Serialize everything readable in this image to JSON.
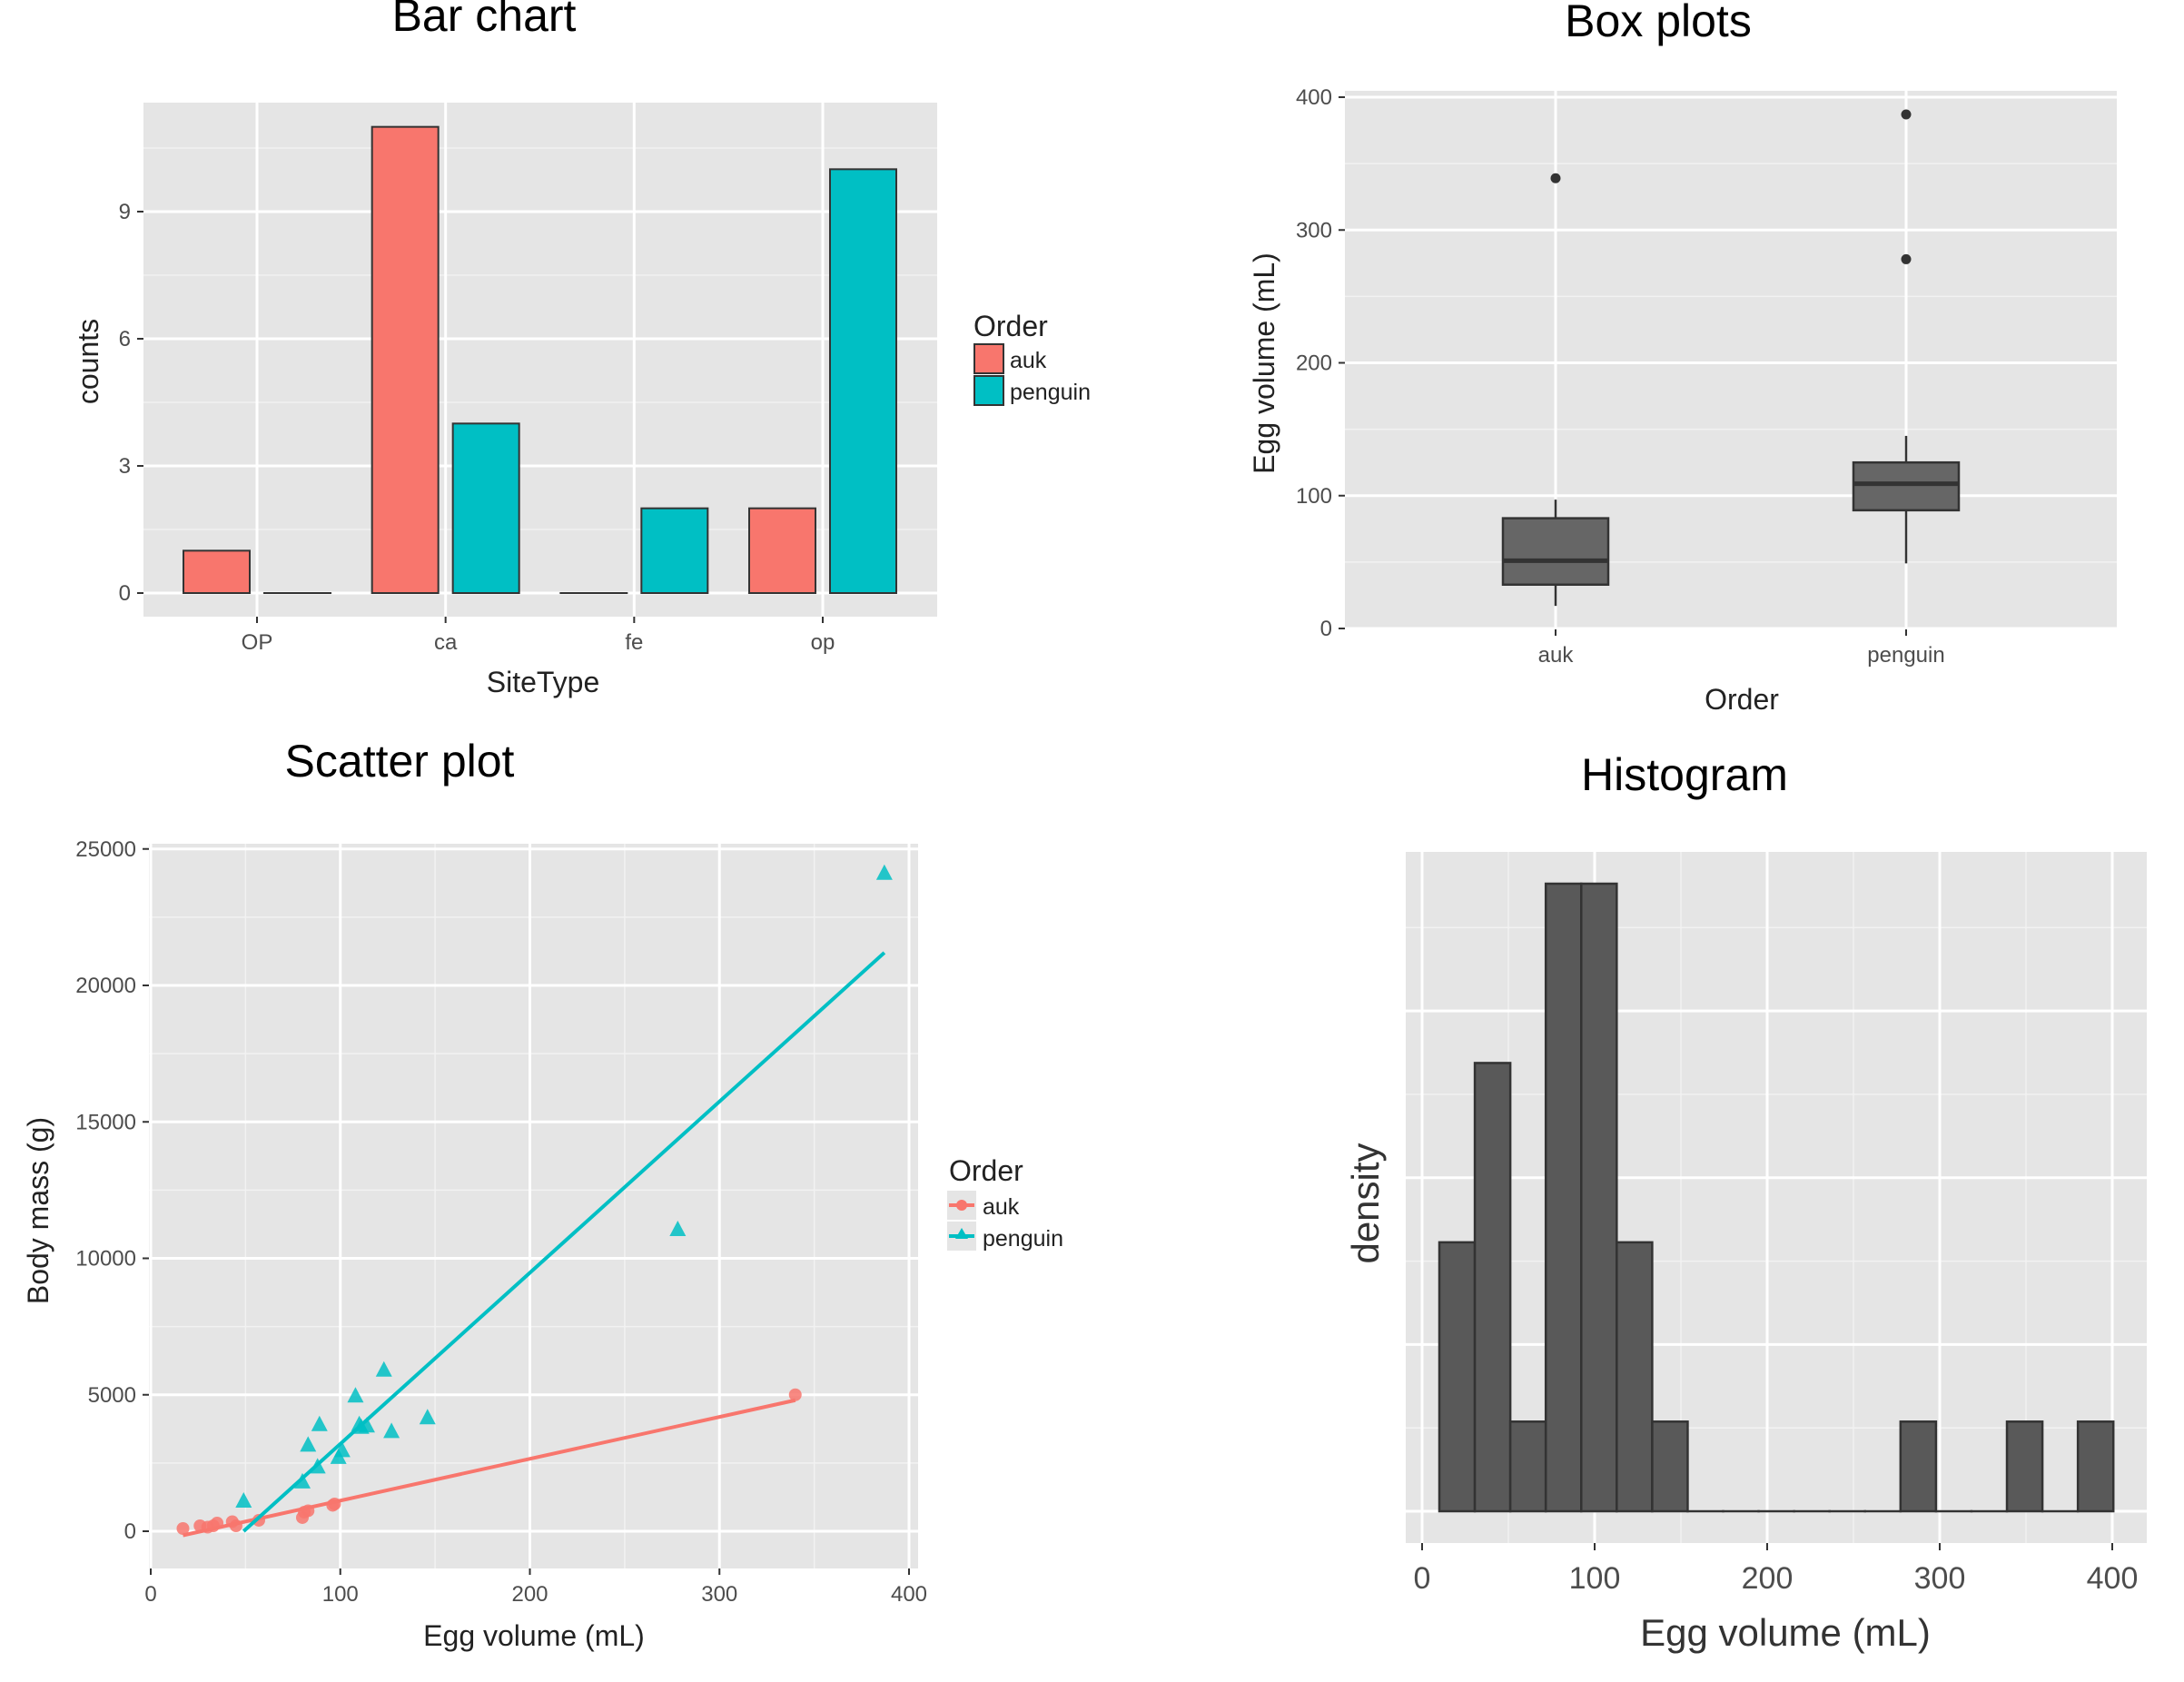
{
  "chart_data": [
    {
      "id": "bar",
      "type": "bar",
      "title": "Bar chart",
      "xlabel": "SiteType",
      "ylabel": "counts",
      "categories": [
        "OP",
        "ca",
        "fe",
        "op"
      ],
      "series": [
        {
          "name": "auk",
          "values": [
            1,
            11,
            0,
            2
          ],
          "color": "#F8766D"
        },
        {
          "name": "penguin",
          "values": [
            0,
            4,
            2,
            10
          ],
          "color": "#00BFC4"
        }
      ],
      "yticks": [
        0,
        3,
        6,
        9
      ],
      "ylim": [
        -0.55,
        11.55
      ],
      "legend": {
        "title": "Order",
        "position": "right"
      },
      "grid": true
    },
    {
      "id": "box",
      "type": "box",
      "title": "Box plots",
      "xlabel": "Order",
      "ylabel": "Egg volume (mL)",
      "categories": [
        "auk",
        "penguin"
      ],
      "boxes": [
        {
          "name": "auk",
          "whisker_low": 17,
          "q1": 33,
          "median": 51,
          "q3": 83,
          "whisker_high": 97,
          "outliers": [
            339
          ]
        },
        {
          "name": "penguin",
          "whisker_low": 49,
          "q1": 89,
          "median": 109,
          "q3": 125,
          "whisker_high": 145,
          "outliers": [
            278,
            387
          ]
        }
      ],
      "yticks": [
        0,
        100,
        200,
        300,
        400
      ],
      "ylim": [
        0,
        405
      ],
      "grid": true
    },
    {
      "id": "scatter",
      "type": "scatter",
      "title": "Scatter plot",
      "xlabel": "Egg volume (mL)",
      "ylabel": "Body mass (g)",
      "xticks": [
        0,
        100,
        200,
        300,
        400
      ],
      "yticks": [
        0,
        5000,
        10000,
        15000,
        20000,
        25000
      ],
      "xlim": [
        0,
        405
      ],
      "ylim": [
        -1400,
        25200
      ],
      "legend": {
        "title": "Order",
        "position": "right"
      },
      "grid": true,
      "series": [
        {
          "name": "auk",
          "marker": "circle",
          "color": "#F8766D",
          "points": [
            [
              17,
              100
            ],
            [
              26,
              200
            ],
            [
              30,
              150
            ],
            [
              33,
              200
            ],
            [
              35,
              300
            ],
            [
              43,
              350
            ],
            [
              45,
              200
            ],
            [
              57,
              400
            ],
            [
              80,
              500
            ],
            [
              81,
              700
            ],
            [
              83,
              750
            ],
            [
              96,
              950
            ],
            [
              97,
              1000
            ],
            [
              340,
              5000
            ]
          ],
          "fit_line": [
            [
              17,
              -150
            ],
            [
              340,
              4800
            ]
          ]
        },
        {
          "name": "penguin",
          "marker": "triangle",
          "color": "#00BFC4",
          "points": [
            [
              49,
              1100
            ],
            [
              80,
              1800
            ],
            [
              83,
              3150
            ],
            [
              88,
              2350
            ],
            [
              89,
              3900
            ],
            [
              99,
              2700
            ],
            [
              101,
              2950
            ],
            [
              108,
              4950
            ],
            [
              110,
              3900
            ],
            [
              111,
              3800
            ],
            [
              114,
              3850
            ],
            [
              123,
              5900
            ],
            [
              127,
              3650
            ],
            [
              146,
              4150
            ],
            [
              278,
              11050
            ],
            [
              387,
              24100
            ]
          ],
          "fit_line": [
            [
              49,
              0
            ],
            [
              387,
              21200
            ]
          ]
        }
      ]
    },
    {
      "id": "hist",
      "type": "histogram",
      "title": "Histogram",
      "xlabel": "Egg volume (mL)",
      "ylabel": "density",
      "bin_start": 10,
      "bin_width": 20.56,
      "counts": [
        3,
        5,
        1,
        7,
        7,
        3,
        1,
        0,
        0,
        0,
        0,
        0,
        0,
        1,
        0,
        0,
        1,
        0,
        1
      ],
      "xticks": [
        0,
        100,
        200,
        300,
        400
      ],
      "xlim": [
        -9,
        419
      ],
      "ylim": [
        -0.25,
        7.25
      ],
      "yticks_labeled": false,
      "grid": true
    }
  ]
}
